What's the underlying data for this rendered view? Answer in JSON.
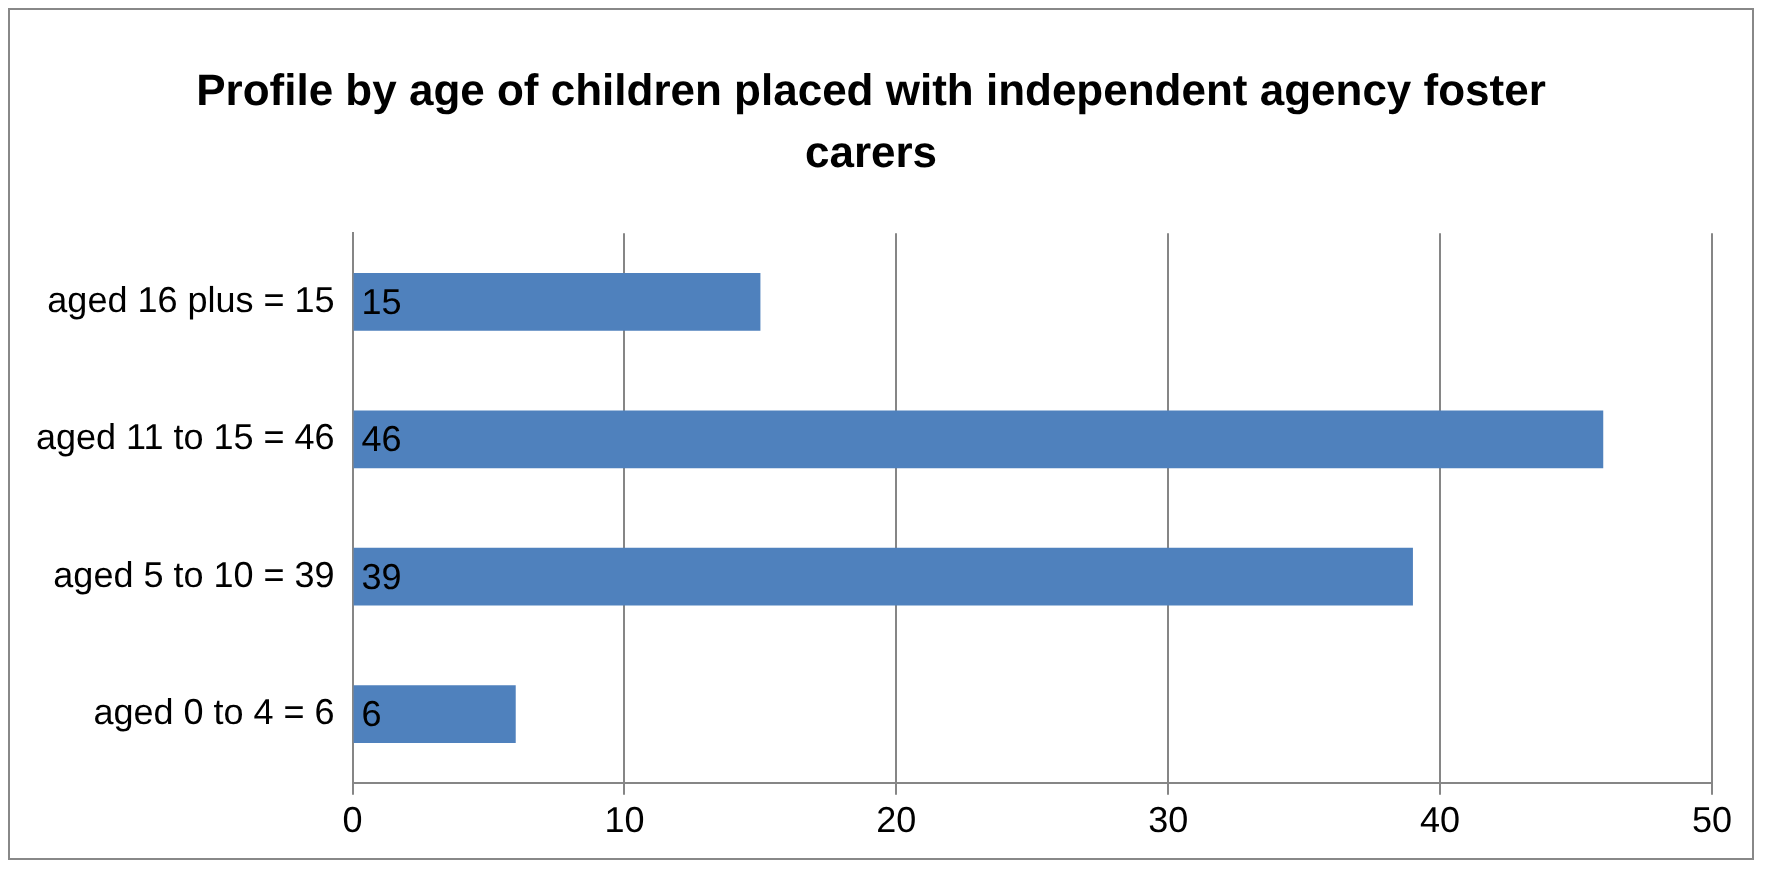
{
  "chart_data": {
    "type": "bar",
    "title": "Profile by age of children placed with independent agency foster carers",
    "orientation": "horizontal",
    "categories": [
      "aged 16 plus = 15",
      "aged 11 to 15 = 46",
      "aged 5 to 10 = 39",
      "aged 0 to 4 = 6"
    ],
    "values": [
      15,
      46,
      39,
      6
    ],
    "color": "#4f81bd",
    "xlim": [
      0,
      50
    ],
    "xticks": [
      0,
      10,
      20,
      30,
      40,
      50
    ],
    "grid": "x",
    "data_labels": true
  }
}
